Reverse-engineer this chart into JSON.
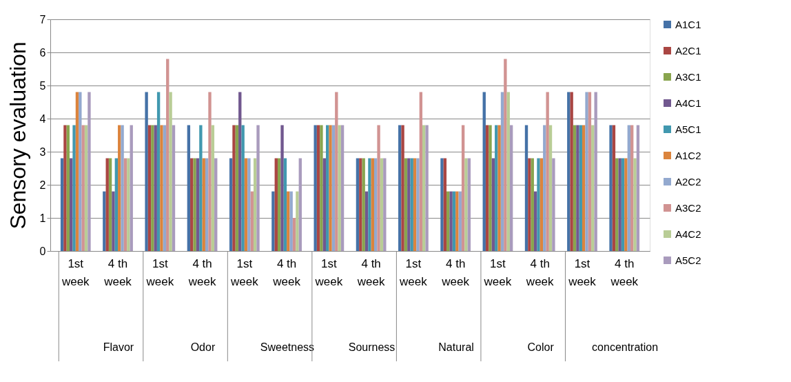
{
  "chart_data": {
    "type": "bar",
    "ylabel": "Sensory evaluation",
    "ylim": [
      0,
      7
    ],
    "yticks": [
      0,
      1,
      2,
      3,
      4,
      5,
      6,
      7
    ],
    "grid": "y",
    "legend": "right",
    "categories": [
      "1st week",
      "4 th week",
      "1st week",
      "4 th week",
      "1st week",
      "4 th week",
      "1st week",
      "4 th week",
      "1st week",
      "4 th week",
      "1st week",
      "4 th week",
      "1st week",
      "4 th week"
    ],
    "annotations": [
      "Flavor",
      "Odor",
      "Sweetness",
      "Sourness",
      "Natural",
      "Color",
      "concentration"
    ],
    "series": [
      {
        "name": "A1C1",
        "color": "#4572a7",
        "values": [
          2.8,
          1.8,
          4.8,
          3.8,
          2.8,
          1.8,
          3.8,
          2.8,
          3.8,
          2.8,
          4.8,
          3.8,
          4.8,
          3.8
        ]
      },
      {
        "name": "A2C1",
        "color": "#aa4643",
        "values": [
          3.8,
          2.8,
          3.8,
          2.8,
          3.8,
          2.8,
          3.8,
          2.8,
          3.8,
          2.8,
          3.8,
          2.8,
          4.8,
          3.8
        ]
      },
      {
        "name": "A3C1",
        "color": "#89a54e",
        "values": [
          3.8,
          2.8,
          3.8,
          2.8,
          3.8,
          2.8,
          3.8,
          2.8,
          2.8,
          1.8,
          3.8,
          2.8,
          3.8,
          2.8
        ]
      },
      {
        "name": "A4C1",
        "color": "#71588f",
        "values": [
          2.8,
          1.8,
          3.8,
          2.8,
          4.8,
          3.8,
          2.8,
          1.8,
          2.8,
          1.8,
          2.8,
          1.8,
          3.8,
          2.8
        ]
      },
      {
        "name": "A5C1",
        "color": "#4198af",
        "values": [
          3.8,
          2.8,
          4.8,
          3.8,
          3.8,
          2.8,
          3.8,
          2.8,
          2.8,
          1.8,
          3.8,
          2.8,
          3.8,
          2.8
        ]
      },
      {
        "name": "A1C2",
        "color": "#db843d",
        "values": [
          4.8,
          3.8,
          3.8,
          2.8,
          2.8,
          1.8,
          3.8,
          2.8,
          2.8,
          1.8,
          3.8,
          2.8,
          3.8,
          2.8
        ]
      },
      {
        "name": "A2C2",
        "color": "#93a9cf",
        "values": [
          4.8,
          3.8,
          3.8,
          2.8,
          2.8,
          1.8,
          3.8,
          2.8,
          2.8,
          1.8,
          4.8,
          3.8,
          4.8,
          3.8
        ]
      },
      {
        "name": "A3C2",
        "color": "#d19392",
        "values": [
          3.8,
          2.8,
          5.8,
          4.8,
          1.8,
          1.0,
          4.8,
          3.8,
          4.8,
          3.8,
          5.8,
          4.8,
          4.8,
          3.8
        ]
      },
      {
        "name": "A4C2",
        "color": "#b9cd96",
        "values": [
          3.8,
          2.8,
          4.8,
          3.8,
          2.8,
          1.8,
          3.8,
          2.8,
          3.8,
          2.8,
          4.8,
          3.8,
          3.8,
          2.8
        ]
      },
      {
        "name": "A5C2",
        "color": "#a99bbd",
        "values": [
          4.8,
          3.8,
          3.8,
          2.8,
          3.8,
          2.8,
          3.8,
          2.8,
          3.8,
          2.8,
          3.8,
          2.8,
          4.8,
          3.8
        ]
      }
    ]
  }
}
